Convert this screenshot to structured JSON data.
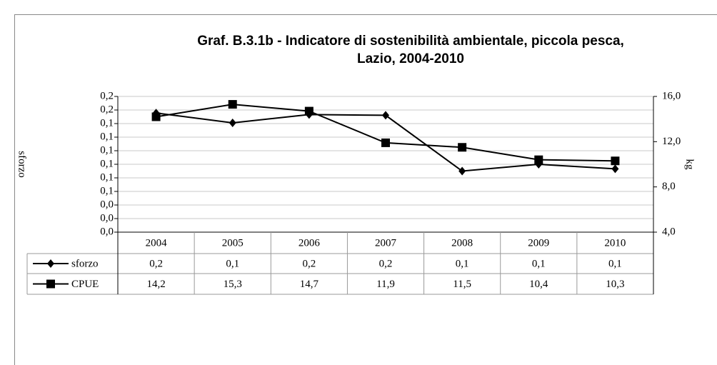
{
  "chart_data": {
    "type": "line",
    "title": [
      "Graf. B.3.1b - Indicatore di sostenibilità ambientale, piccola pesca,",
      "Lazio, 2004-2010"
    ],
    "y_label": "sforzo",
    "y2_label": "kg",
    "categories": [
      "2004",
      "2005",
      "2006",
      "2007",
      "2008",
      "2009",
      "2010"
    ],
    "series": [
      {
        "name": "sforzo",
        "color": "#000000",
        "marker": "diamond",
        "axis": "y",
        "values": [
          0.158,
          0.145,
          0.156,
          0.155,
          0.081,
          0.09,
          0.084
        ],
        "value_labels": [
          "0,2",
          "0,1",
          "0,2",
          "0,2",
          "0,1",
          "0,1",
          "0,1"
        ]
      },
      {
        "name": "CPUE",
        "color": "#000000",
        "marker": "square",
        "axis": "y2",
        "values": [
          14.2,
          15.3,
          14.7,
          11.9,
          11.5,
          10.4,
          10.3
        ],
        "value_labels": [
          "14,2",
          "15,3",
          "14,7",
          "11,9",
          "11,5",
          "10,4",
          "10,3"
        ]
      }
    ],
    "ylim": [
      0,
      0.18
    ],
    "yticks": [
      {
        "value": 0,
        "label": "0,0"
      },
      {
        "value": 0.018,
        "label": "0,0"
      },
      {
        "value": 0.036,
        "label": "0,0"
      },
      {
        "value": 0.054,
        "label": "0,1"
      },
      {
        "value": 0.072,
        "label": "0,1"
      },
      {
        "value": 0.09,
        "label": "0,1"
      },
      {
        "value": 0.108,
        "label": "0,1"
      },
      {
        "value": 0.126,
        "label": "0,1"
      },
      {
        "value": 0.144,
        "label": "0,1"
      },
      {
        "value": 0.162,
        "label": "0,2"
      },
      {
        "value": 0.18,
        "label": "0,2"
      }
    ],
    "y2lim": [
      4,
      16
    ],
    "y2ticks": [
      {
        "value": 4,
        "label": "4,0"
      },
      {
        "value": 8,
        "label": "8,0"
      },
      {
        "value": 12,
        "label": "12,0"
      },
      {
        "value": 16,
        "label": "16,0"
      }
    ],
    "grid": true
  }
}
